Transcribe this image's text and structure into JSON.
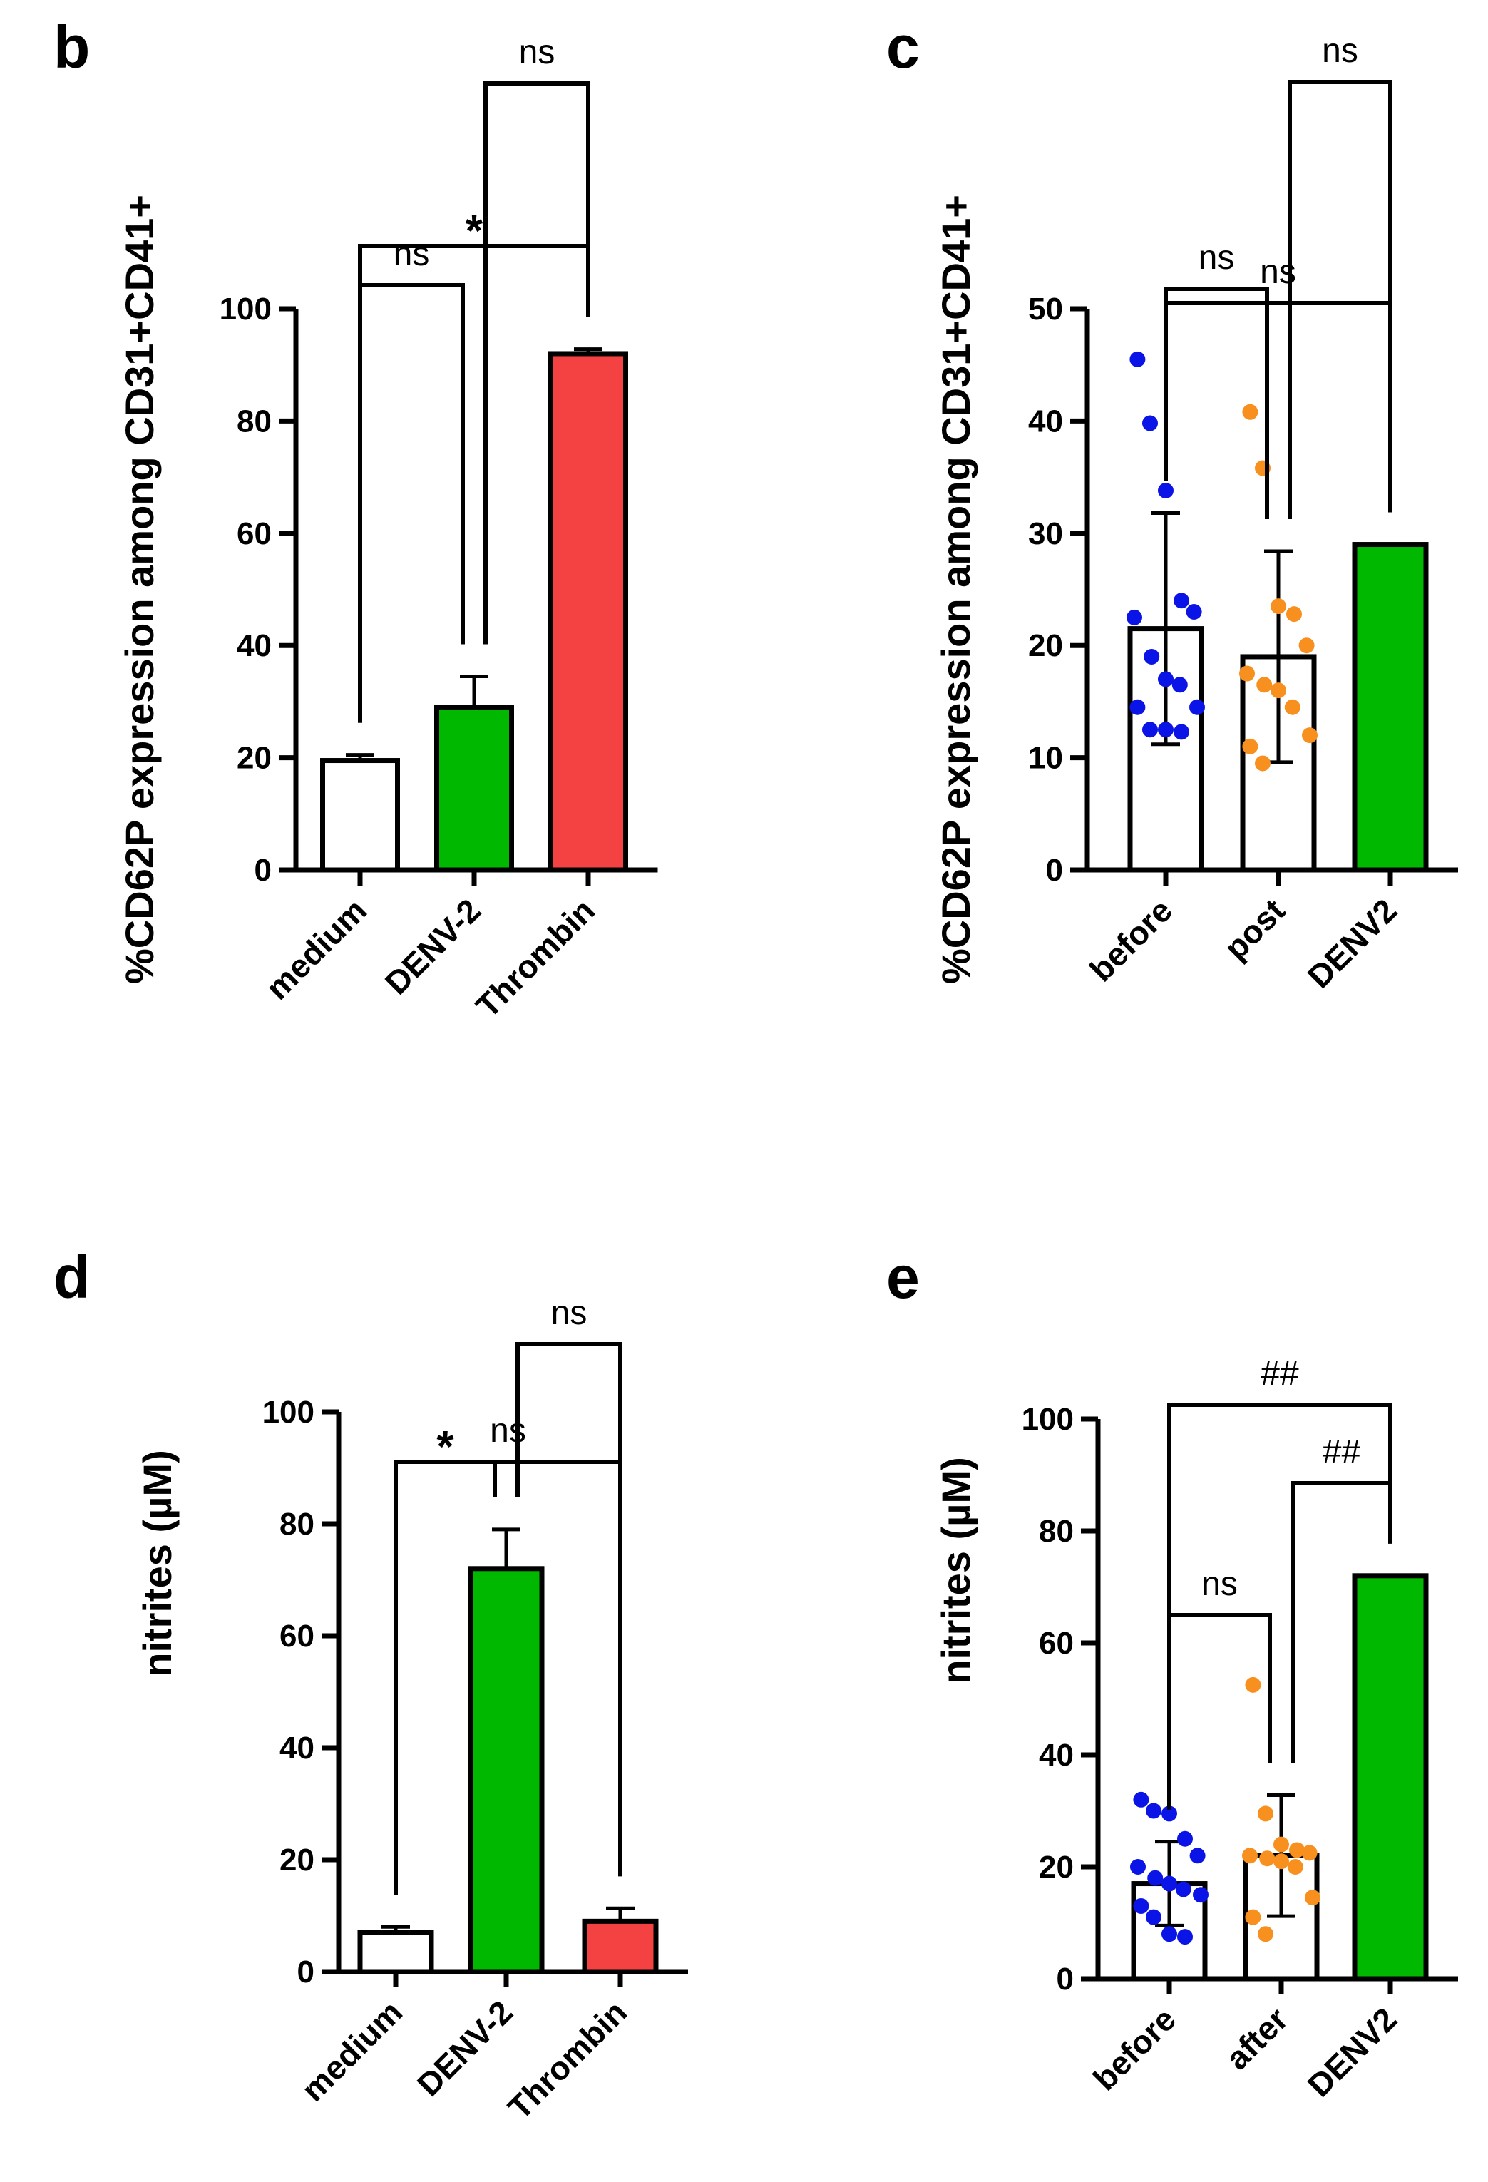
{
  "colors": {
    "medium": "#ffffff",
    "denv": "#00b800",
    "thrombin": "#f44242",
    "before_points": "#0a14e6",
    "post_points": "#f7901e",
    "axis": "#000000"
  },
  "chart_data": [
    {
      "panel": "b",
      "type": "bar",
      "ylabel": "%CD62P expression among CD31+CD41+",
      "ylim": [
        0,
        100
      ],
      "yticks": [
        "0",
        "20",
        "40",
        "60",
        "80",
        "100"
      ],
      "categories": [
        "medium",
        "DENV-2",
        "Thrombin"
      ],
      "values": [
        19.5,
        29,
        92
      ],
      "errors": [
        1,
        5.5,
        0.8
      ],
      "bar_colors": [
        "#ffffff",
        "#00b800",
        "#f44242"
      ],
      "points": [],
      "comparisons": [
        {
          "from": 0,
          "to": 1,
          "label": "ns"
        },
        {
          "from": 1,
          "to": 2,
          "label": "ns"
        },
        {
          "from": 0,
          "to": 2,
          "label": "*"
        }
      ]
    },
    {
      "panel": "c",
      "type": "bar",
      "ylabel": "%CD62P expression among CD31+CD41+",
      "ylim": [
        0,
        50
      ],
      "yticks": [
        "0",
        "10",
        "20",
        "30",
        "40",
        "50"
      ],
      "categories": [
        "before",
        "post",
        "DENV2"
      ],
      "values": [
        21.5,
        19,
        29
      ],
      "errors": [
        10.3,
        9.4,
        0
      ],
      "bar_colors": [
        "#ffffff",
        "#ffffff",
        "#00b800"
      ],
      "points": [
        {
          "series": 0,
          "color": "#0a14e6",
          "values": [
            45.5,
            39.8,
            33.8,
            24,
            23,
            22.5,
            19,
            17,
            16.5,
            14.5,
            14.5,
            12.5,
            12.5,
            12.3
          ]
        },
        {
          "series": 1,
          "color": "#f7901e",
          "values": [
            40.8,
            35.8,
            23.5,
            22.8,
            20,
            17.5,
            16.5,
            16,
            14.5,
            12,
            11,
            9.5
          ]
        }
      ],
      "comparisons": [
        {
          "from": 0,
          "to": 1,
          "label": "ns"
        },
        {
          "from": 1,
          "to": 2,
          "label": "ns"
        },
        {
          "from": 0,
          "to": 2,
          "label": "ns"
        }
      ]
    },
    {
      "panel": "d",
      "type": "bar",
      "ylabel": "nitrites (µM)",
      "ylim": [
        0,
        100
      ],
      "yticks": [
        "0",
        "20",
        "40",
        "60",
        "80",
        "100"
      ],
      "categories": [
        "medium",
        "DENV-2",
        "Thrombin"
      ],
      "values": [
        7,
        72,
        9
      ],
      "errors": [
        1,
        7,
        2.3
      ],
      "bar_colors": [
        "#ffffff",
        "#00b800",
        "#f44242"
      ],
      "points": [],
      "comparisons": [
        {
          "from": 0,
          "to": 1,
          "label": "*"
        },
        {
          "from": 1,
          "to": 2,
          "label": "ns"
        },
        {
          "from": 0,
          "to": 2,
          "label": "ns"
        }
      ]
    },
    {
      "panel": "e",
      "type": "bar",
      "ylabel": "nitrites (µM)",
      "ylim": [
        0,
        100
      ],
      "yticks": [
        "0",
        "20",
        "40",
        "60",
        "80",
        "100"
      ],
      "categories": [
        "before",
        "after",
        "DENV2"
      ],
      "values": [
        17,
        22,
        72
      ],
      "errors": [
        7.5,
        10.8,
        0
      ],
      "bar_colors": [
        "#ffffff",
        "#ffffff",
        "#00b800"
      ],
      "points": [
        {
          "series": 0,
          "color": "#0a14e6",
          "values": [
            32,
            30,
            29.5,
            25,
            22,
            20,
            18,
            17,
            16,
            15,
            13,
            11,
            8,
            7.5
          ]
        },
        {
          "series": 1,
          "color": "#f7901e",
          "values": [
            52.5,
            29.5,
            24,
            23,
            22.5,
            22,
            21.5,
            21,
            20,
            14.5,
            11,
            8
          ]
        }
      ],
      "comparisons": [
        {
          "from": 0,
          "to": 1,
          "label": "ns"
        },
        {
          "from": 1,
          "to": 2,
          "label": "##"
        },
        {
          "from": 0,
          "to": 2,
          "label": "##"
        }
      ]
    }
  ]
}
